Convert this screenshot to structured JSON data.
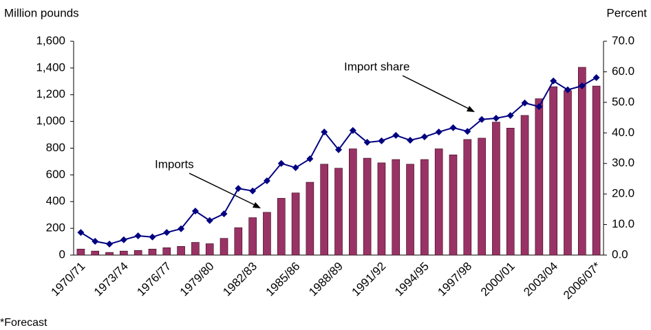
{
  "chart_data": {
    "type": "bar-line",
    "y_label": "Million pounds",
    "y2_label": "Percent",
    "footnote": "*Forecast",
    "categories": [
      "1970/71",
      null,
      null,
      "1973/74",
      null,
      null,
      "1976/77",
      null,
      null,
      "1979/80",
      null,
      null,
      "1982/83",
      null,
      null,
      "1985/86",
      null,
      null,
      "1988/89",
      null,
      null,
      "1991/92",
      null,
      null,
      "1994/95",
      null,
      null,
      "1997/98",
      null,
      null,
      "2000/01",
      null,
      null,
      "2003/04",
      null,
      null,
      "2006/07*"
    ],
    "series": [
      {
        "name": "Imports",
        "type": "bar",
        "color": "#993366",
        "values": [
          45,
          30,
          20,
          30,
          35,
          45,
          55,
          65,
          95,
          85,
          125,
          205,
          280,
          320,
          425,
          465,
          545,
          680,
          650,
          795,
          725,
          690,
          715,
          680,
          715,
          795,
          750,
          865,
          875,
          995,
          950,
          1045,
          1170,
          1260,
          1230,
          1405,
          1265
        ]
      },
      {
        "name": "Import share",
        "type": "line",
        "axis": "y2",
        "color": "#000080",
        "values": [
          7.4,
          4.5,
          3.6,
          5.0,
          6.3,
          5.9,
          7.4,
          8.6,
          14.4,
          11.3,
          13.5,
          21.8,
          21.0,
          24.3,
          30.0,
          28.6,
          31.5,
          40.3,
          34.5,
          40.8,
          36.9,
          37.4,
          39.2,
          37.6,
          38.7,
          40.3,
          41.7,
          40.5,
          44.4,
          44.8,
          45.7,
          49.8,
          48.6,
          57.0,
          54.1,
          55.4,
          58.1
        ]
      }
    ],
    "ylim": [
      0,
      1600
    ],
    "yticks": [
      0,
      200,
      400,
      600,
      800,
      {
        "value": 1000,
        "label": "1,000"
      },
      {
        "value": 1200,
        "label": "1,200"
      },
      {
        "value": 1400,
        "label": "1,400"
      },
      {
        "value": 1600,
        "label": "1,600"
      }
    ],
    "y2lim": [
      0,
      70
    ],
    "y2ticks": [
      {
        "value": 0,
        "label": "0.0"
      },
      {
        "value": 10,
        "label": "10.0"
      },
      {
        "value": 20,
        "label": "20.0"
      },
      {
        "value": 30,
        "label": "30.0"
      },
      {
        "value": 40,
        "label": "40.0"
      },
      {
        "value": 50,
        "label": "50.0"
      },
      {
        "value": 60,
        "label": "60.0"
      },
      {
        "value": 70,
        "label": "70.0"
      }
    ]
  }
}
